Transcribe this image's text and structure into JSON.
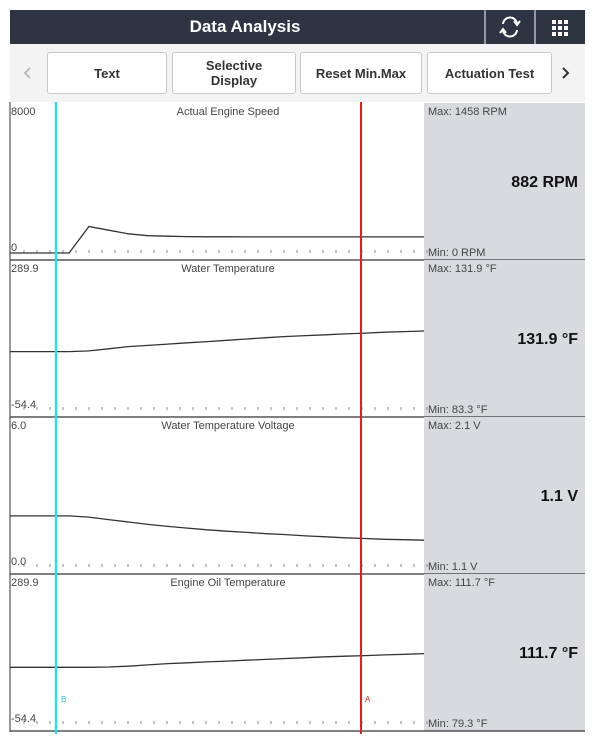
{
  "header": {
    "title": "Data Analysis"
  },
  "toolbar": {
    "buttons": [
      "Text",
      "Selective Display",
      "Reset Min.Max",
      "Actuation Test"
    ]
  },
  "panels": [
    {
      "title": "Actual Engine Speed",
      "ylim": [
        0,
        8000
      ],
      "yticks": [
        0,
        8000
      ],
      "max": "Max: 1458 RPM",
      "value": "882 RPM",
      "min": "Min: 0 RPM",
      "trace": [
        0,
        0,
        0,
        0,
        1450,
        1250,
        1050,
        950,
        920,
        900,
        890,
        885,
        882,
        882,
        882,
        882,
        882,
        882,
        882,
        882,
        882,
        882
      ]
    },
    {
      "title": "Water Temperature",
      "ylim": [
        -54.4,
        289.9
      ],
      "yticks": [
        -54.4,
        289.9
      ],
      "max": "Max: 131.9 °F",
      "value": "131.9 °F",
      "min": "Min: 83.3 °F",
      "trace": [
        83.3,
        83.3,
        83.3,
        83.3,
        85,
        90,
        95,
        98,
        101,
        104,
        107,
        110,
        113,
        116,
        119,
        121,
        123,
        125,
        127,
        129,
        130.5,
        131.9
      ]
    },
    {
      "title": "Water Temperature Voltage",
      "ylim": [
        0,
        6
      ],
      "yticks": [
        {
          "value": 0,
          "label": "0.0"
        },
        {
          "value": 6,
          "label": "6.0"
        }
      ],
      "max": "Max: 2.1 V",
      "value": "1.1 V",
      "min": "Min: 1.1 V",
      "trace": [
        2.1,
        2.1,
        2.1,
        2.1,
        2.05,
        1.95,
        1.85,
        1.75,
        1.67,
        1.6,
        1.53,
        1.47,
        1.42,
        1.37,
        1.33,
        1.28,
        1.24,
        1.2,
        1.17,
        1.14,
        1.12,
        1.1
      ]
    },
    {
      "title": "Engine Oil Temperature",
      "ylim": [
        -54.4,
        289.9
      ],
      "yticks": [
        -54.4,
        289.9
      ],
      "max": "Max: 111.7 °F",
      "value": "111.7 °F",
      "min": "Min: 79.3 °F",
      "trace": [
        79.3,
        79.3,
        79.3,
        79.3,
        79.3,
        80,
        82,
        85,
        88,
        90,
        92,
        94,
        96,
        98,
        100,
        102,
        104,
        105.5,
        107,
        108.5,
        110,
        111.7
      ]
    }
  ],
  "cursors": {
    "b": "B",
    "a": "A"
  }
}
